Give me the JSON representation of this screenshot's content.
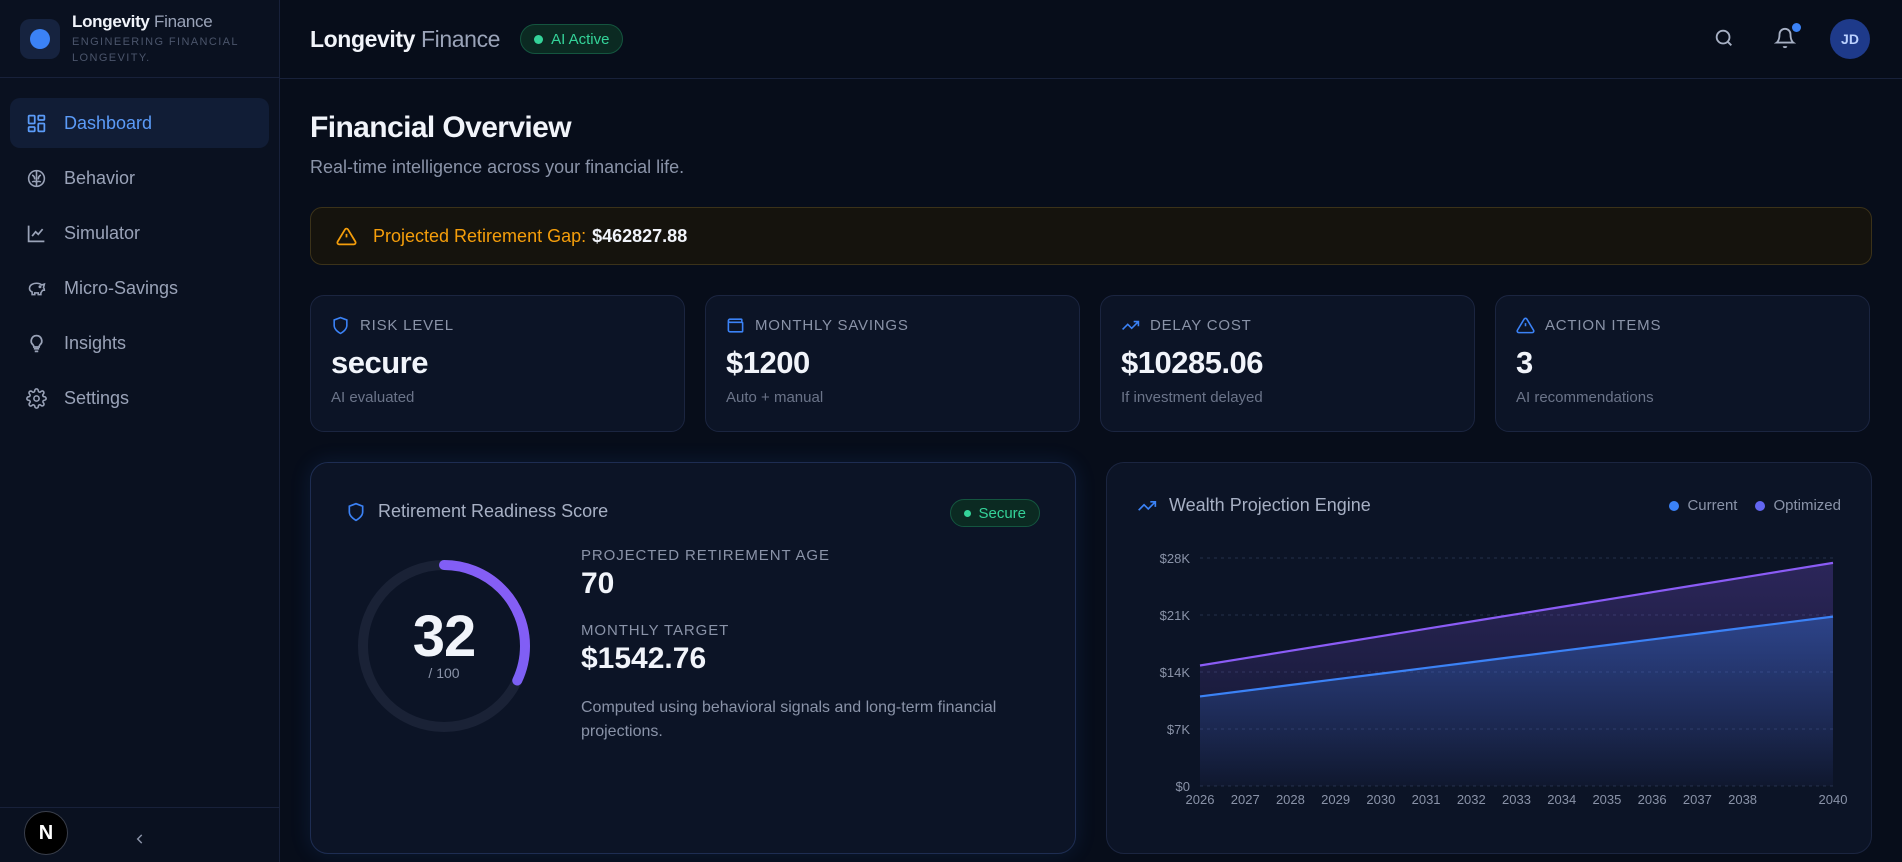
{
  "brand": {
    "name_bold": "Longevity",
    "name_light": "Finance",
    "tagline": "ENGINEERING FINANCIAL LONGEVITY."
  },
  "sidebar": {
    "items": [
      {
        "label": "Dashboard",
        "icon": "dashboard-grid-icon",
        "active": true
      },
      {
        "label": "Behavior",
        "icon": "brain-icon",
        "active": false
      },
      {
        "label": "Simulator",
        "icon": "line-chart-icon",
        "active": false
      },
      {
        "label": "Micro-Savings",
        "icon": "piggy-bank-icon",
        "active": false
      },
      {
        "label": "Insights",
        "icon": "lightbulb-icon",
        "active": false
      },
      {
        "label": "Settings",
        "icon": "gear-icon",
        "active": false
      }
    ],
    "footer_badge": "N"
  },
  "header": {
    "title_bold": "Longevity",
    "title_light": "Finance",
    "ai_status": "AI Active",
    "avatar_initials": "JD"
  },
  "page": {
    "title": "Financial Overview",
    "subtitle": "Real-time intelligence across your financial life."
  },
  "alert": {
    "label": "Projected Retirement Gap:",
    "value": "$462827.88",
    "color": "#f59e0b"
  },
  "stats": [
    {
      "label": "RISK LEVEL",
      "value": "secure",
      "sub": "AI evaluated",
      "icon": "shield-icon"
    },
    {
      "label": "MONTHLY SAVINGS",
      "value": "$1200",
      "sub": "Auto + manual",
      "icon": "wallet-icon"
    },
    {
      "label": "DELAY COST",
      "value": "$10285.06",
      "sub": "If investment delayed",
      "icon": "trending-up-icon"
    },
    {
      "label": "ACTION ITEMS",
      "value": "3",
      "sub": "AI recommendations",
      "icon": "warning-triangle-icon"
    }
  ],
  "readiness": {
    "title": "Retirement Readiness Score",
    "badge": "Secure",
    "score": "32",
    "score_max": "/ 100",
    "score_fraction": 0.32,
    "retirement_age_label": "PROJECTED RETIREMENT AGE",
    "retirement_age": "70",
    "monthly_target_label": "MONTHLY TARGET",
    "monthly_target": "$1542.76",
    "note": "Computed using behavioral signals and long-term financial projections."
  },
  "projection": {
    "title": "Wealth Projection Engine"
  },
  "chart_data": {
    "type": "area",
    "x": [
      2026,
      2027,
      2028,
      2029,
      2030,
      2031,
      2032,
      2033,
      2034,
      2035,
      2036,
      2037,
      2038,
      2039,
      2040
    ],
    "x_tick_labels": [
      "2026",
      "2027",
      "2028",
      "2029",
      "2030",
      "2031",
      "2032",
      "2033",
      "2034",
      "2035",
      "2036",
      "2037",
      "2038",
      "",
      "2040"
    ],
    "series": [
      {
        "name": "Current",
        "color": "#3b82f6",
        "values": [
          11000,
          11700,
          12400,
          13100,
          13800,
          14500,
          15200,
          15900,
          16600,
          17300,
          18000,
          18700,
          19400,
          20100,
          20800
        ]
      },
      {
        "name": "Optimized",
        "color": "#8b5cf6",
        "values": [
          14800,
          15700,
          16600,
          17500,
          18400,
          19300,
          20200,
          21100,
          22000,
          22900,
          23800,
          24700,
          25600,
          26500,
          27400
        ]
      }
    ],
    "y_ticks": [
      0,
      7000,
      14000,
      21000,
      28000
    ],
    "y_tick_labels": [
      "$0",
      "$7K",
      "$14K",
      "$21K",
      "$28K"
    ],
    "ylim": [
      0,
      28000
    ],
    "grid": true,
    "legend": "top-right"
  }
}
